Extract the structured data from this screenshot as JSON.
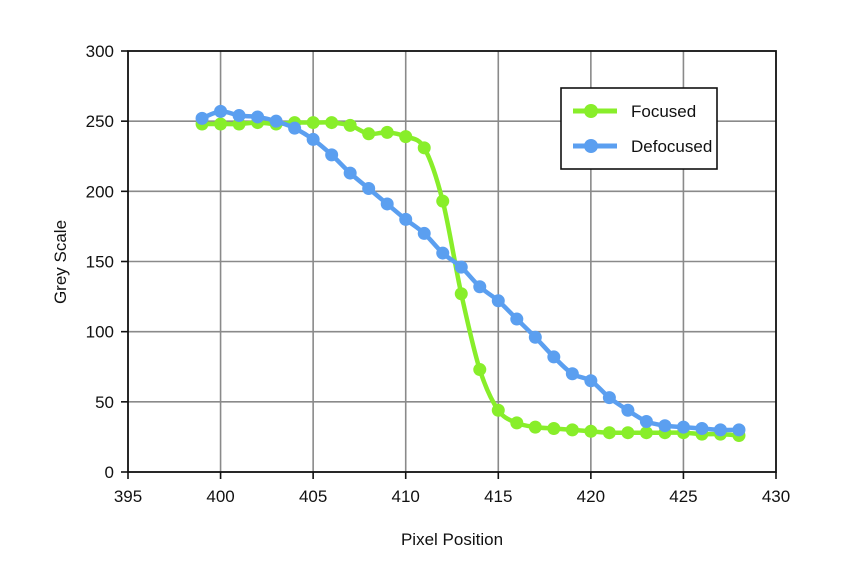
{
  "chart_data": {
    "type": "line",
    "title": "",
    "xlabel": "Pixel Position",
    "ylabel": "Grey Scale",
    "xlim": [
      395,
      430
    ],
    "ylim": [
      0,
      300
    ],
    "x_ticks": [
      395,
      400,
      405,
      410,
      415,
      420,
      425,
      430
    ],
    "y_ticks": [
      0,
      50,
      100,
      150,
      200,
      250,
      300
    ],
    "grid": true,
    "legend_position": "top-right",
    "x": [
      399,
      400,
      401,
      402,
      403,
      404,
      405,
      406,
      407,
      408,
      409,
      410,
      411,
      412,
      413,
      414,
      415,
      416,
      417,
      418,
      419,
      420,
      421,
      422,
      423,
      424,
      425,
      426,
      427,
      428
    ],
    "series": [
      {
        "name": "Focused",
        "color": "#88ee2a",
        "values": [
          248,
          248,
          248,
          249,
          248,
          249,
          249,
          249,
          247,
          241,
          242,
          239,
          231,
          193,
          127,
          73,
          44,
          35,
          32,
          31,
          30,
          29,
          28,
          28,
          28,
          28,
          28,
          27,
          27,
          26
        ]
      },
      {
        "name": "Defocused",
        "color": "#5b9ff0",
        "values": [
          252,
          257,
          254,
          253,
          250,
          245,
          237,
          226,
          213,
          202,
          191,
          180,
          170,
          156,
          146,
          132,
          122,
          109,
          96,
          82,
          70,
          65,
          53,
          44,
          36,
          33,
          32,
          31,
          30,
          30
        ]
      }
    ]
  }
}
